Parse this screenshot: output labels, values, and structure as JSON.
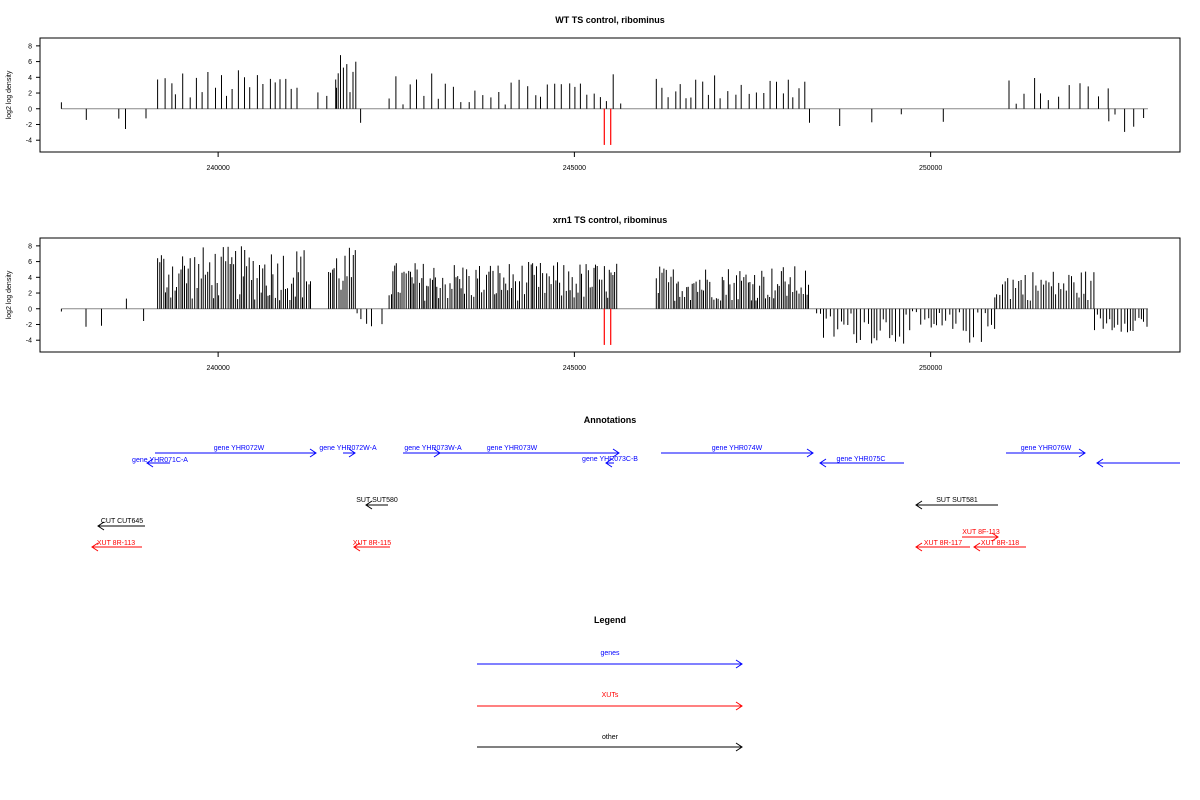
{
  "chart_data": [
    {
      "type": "bar",
      "title": "WT TS control, ribominus",
      "ylabel": "log2 log density",
      "xlim": [
        237500,
        253500
      ],
      "ylim": [
        -5.5,
        9
      ],
      "yticks": [
        -4,
        -2,
        0,
        2,
        4,
        6,
        8
      ],
      "xticks": [
        240000,
        245000,
        250000
      ],
      "xtick_labels": [
        "240000",
        "245000",
        "250000"
      ],
      "marker_color": "#ff0000",
      "bar_color": "#000000",
      "markers": [
        245420,
        245510
      ],
      "segments": [
        {
          "from": 237800,
          "to": 237820,
          "min": 0.5,
          "max": 1.0,
          "density": 0.5
        },
        {
          "from": 238150,
          "to": 238700,
          "min": -3.5,
          "max": -0.2,
          "density": 0.04
        },
        {
          "from": 238700,
          "to": 239150,
          "min": -3.0,
          "max": -0.5,
          "density": 0.06
        },
        {
          "from": 239150,
          "to": 239400,
          "min": 1.5,
          "max": 4.5,
          "density": 0.12
        },
        {
          "from": 239400,
          "to": 241150,
          "min": 1.0,
          "max": 5.0,
          "density": 0.16
        },
        {
          "from": 241400,
          "to": 241700,
          "min": 1.0,
          "max": 3.5,
          "density": 0.08
        },
        {
          "from": 241650,
          "to": 241950,
          "min": 2.0,
          "max": 8.0,
          "density": 0.35
        },
        {
          "from": 242000,
          "to": 242300,
          "min": -3.0,
          "max": -0.5,
          "density": 0.05
        },
        {
          "from": 242400,
          "to": 245650,
          "min": 0.5,
          "max": 4.5,
          "density": 0.15
        },
        {
          "from": 245650,
          "to": 245720,
          "min": 0.3,
          "max": 1.0,
          "density": 0.05
        },
        {
          "from": 246150,
          "to": 248300,
          "min": 1.0,
          "max": 4.5,
          "density": 0.16
        },
        {
          "from": 248300,
          "to": 250500,
          "min": -3.5,
          "max": -0.5,
          "density": 0.03
        },
        {
          "from": 251100,
          "to": 252500,
          "min": 0.5,
          "max": 4.0,
          "density": 0.12
        },
        {
          "from": 252500,
          "to": 253050,
          "min": -3.0,
          "max": -0.5,
          "density": 0.12
        }
      ]
    },
    {
      "type": "bar",
      "title": "xrn1 TS control, ribominus",
      "ylabel": "log2 log density",
      "xlim": [
        237500,
        253500
      ],
      "ylim": [
        -5.5,
        9
      ],
      "yticks": [
        -4,
        -2,
        0,
        2,
        4,
        6,
        8
      ],
      "xticks": [
        240000,
        245000,
        250000
      ],
      "xtick_labels": [
        "240000",
        "245000",
        "250000"
      ],
      "marker_color": "#ff0000",
      "bar_color": "#000000",
      "markers": [
        245420,
        245510
      ],
      "segments": [
        {
          "from": 237800,
          "to": 239150,
          "min": -3.5,
          "max": 2.5,
          "density": 0.05
        },
        {
          "from": 239150,
          "to": 241300,
          "min": 1.0,
          "max": 8.0,
          "density": 0.5
        },
        {
          "from": 241550,
          "to": 241950,
          "min": 1.5,
          "max": 8.0,
          "density": 0.5
        },
        {
          "from": 241950,
          "to": 242200,
          "min": -2.5,
          "max": -0.5,
          "density": 0.2
        },
        {
          "from": 242300,
          "to": 242400,
          "min": -2.5,
          "max": -0.5,
          "density": 0.05
        },
        {
          "from": 242400,
          "to": 245600,
          "min": 1.0,
          "max": 6.0,
          "density": 0.5
        },
        {
          "from": 246150,
          "to": 248300,
          "min": 1.0,
          "max": 5.5,
          "density": 0.5
        },
        {
          "from": 248400,
          "to": 250900,
          "min": -4.5,
          "max": -0.3,
          "density": 0.3
        },
        {
          "from": 250900,
          "to": 252300,
          "min": 1.0,
          "max": 5.0,
          "density": 0.4
        },
        {
          "from": 252300,
          "to": 253050,
          "min": -3.0,
          "max": -0.5,
          "density": 0.35
        }
      ]
    }
  ],
  "annotations": {
    "title": "Annotations",
    "genes": [
      {
        "label": "gene YHR071C-A",
        "dir": "left"
      },
      {
        "label": "gene YHR072W",
        "dir": "right"
      },
      {
        "label": "gene YHR072W-A",
        "dir": "right"
      },
      {
        "label": "gene YHR073W-A",
        "dir": "right"
      },
      {
        "label": "gene YHR073W",
        "dir": "right"
      },
      {
        "label": "gene YHR073C-B",
        "dir": "left"
      },
      {
        "label": "gene YHR074W",
        "dir": "right"
      },
      {
        "label": "gene YHR075C",
        "dir": "left"
      },
      {
        "label": "gene YHR076W",
        "dir": "right"
      },
      {
        "label": "",
        "dir": "left"
      }
    ],
    "other": [
      {
        "label": "SUT SUT580",
        "dir": "left"
      },
      {
        "label": "SUT SUT581",
        "dir": "left"
      },
      {
        "label": "CUT CUT645",
        "dir": "left"
      }
    ],
    "xuts": [
      {
        "label": "XUT 8R-113",
        "dir": "left"
      },
      {
        "label": "XUT 8R-115",
        "dir": "left"
      },
      {
        "label": "XUT 8F-113",
        "dir": "right"
      },
      {
        "label": "XUT 8R-117",
        "dir": "left"
      },
      {
        "label": "XUT 8R-118",
        "dir": "left"
      }
    ]
  },
  "legend": {
    "title": "Legend",
    "items": [
      {
        "label": "genes",
        "color": "#0000ff"
      },
      {
        "label": "XUTs",
        "color": "#ff0000"
      },
      {
        "label": "other",
        "color": "#000000"
      }
    ]
  },
  "colors": {
    "genes": "#0000ff",
    "xuts": "#ff0000",
    "other": "#000000"
  }
}
